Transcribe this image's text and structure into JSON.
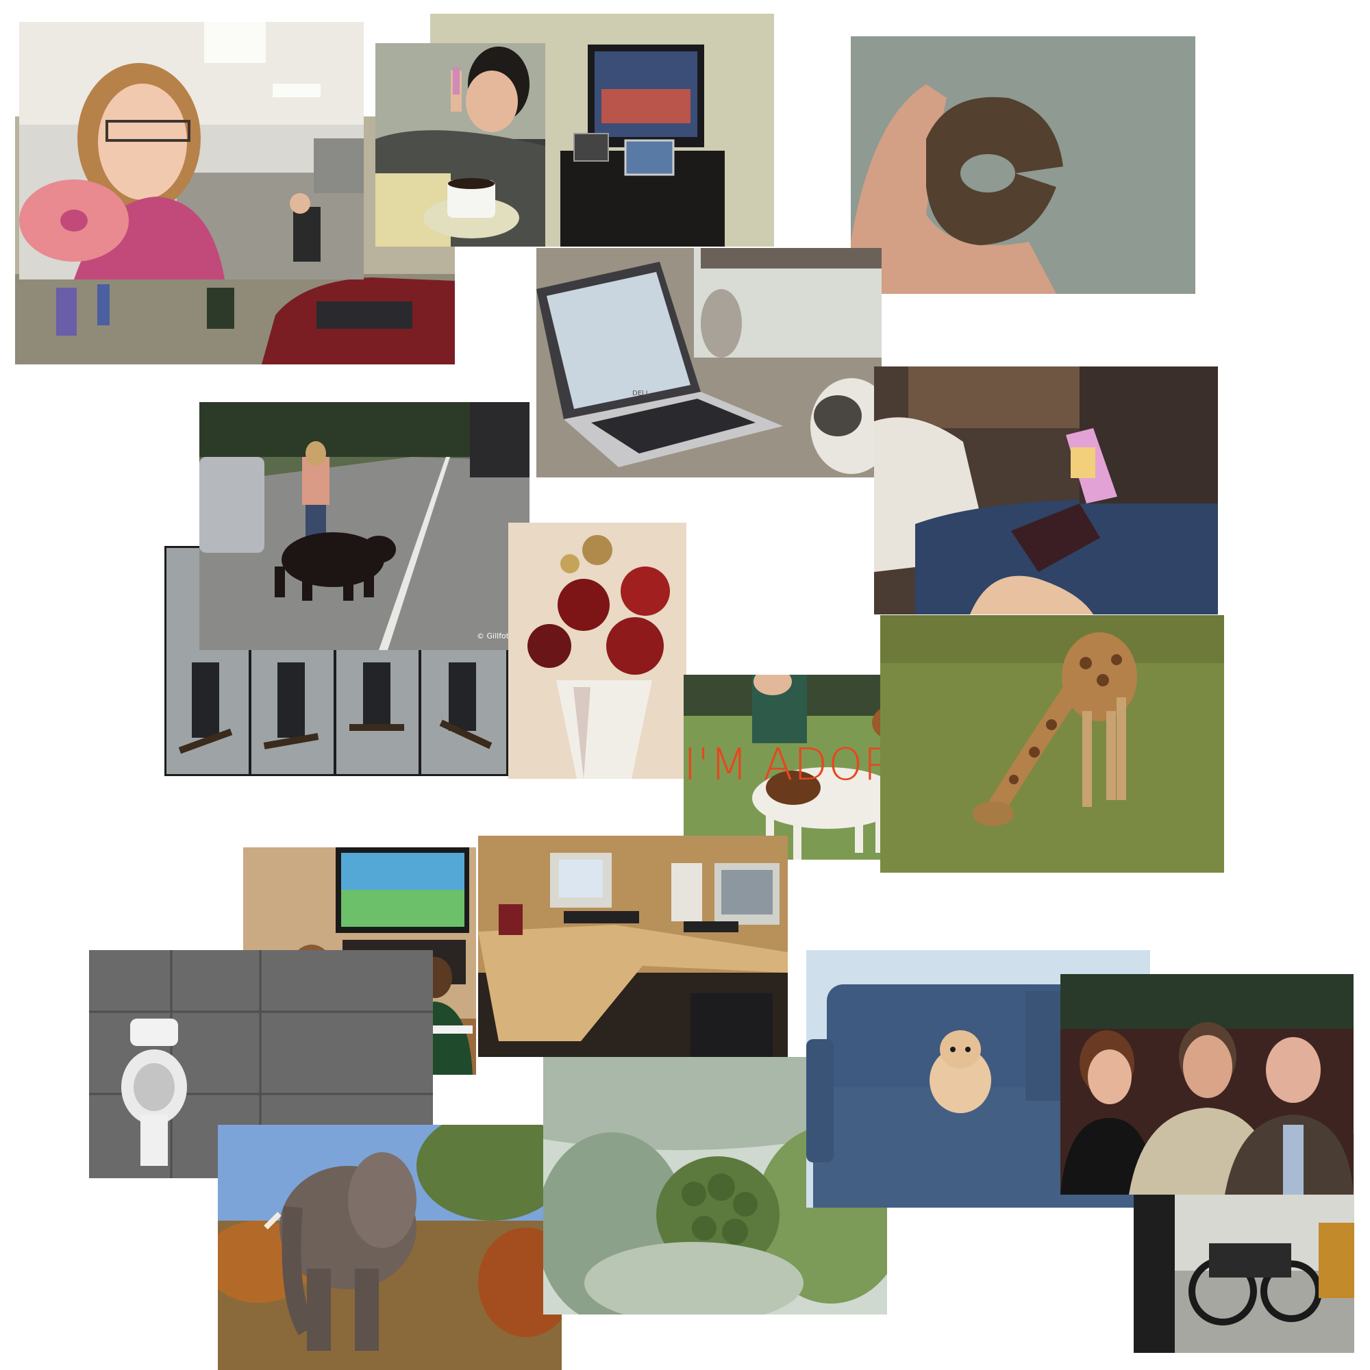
{
  "collage": {
    "watermark_bear": "© Gillfoto",
    "adopted_caption": "I'M ADOPTED",
    "laptop_brand": "DELL"
  },
  "colors": {
    "background": "#ffffff",
    "adopted_caption": "#e8461f"
  }
}
